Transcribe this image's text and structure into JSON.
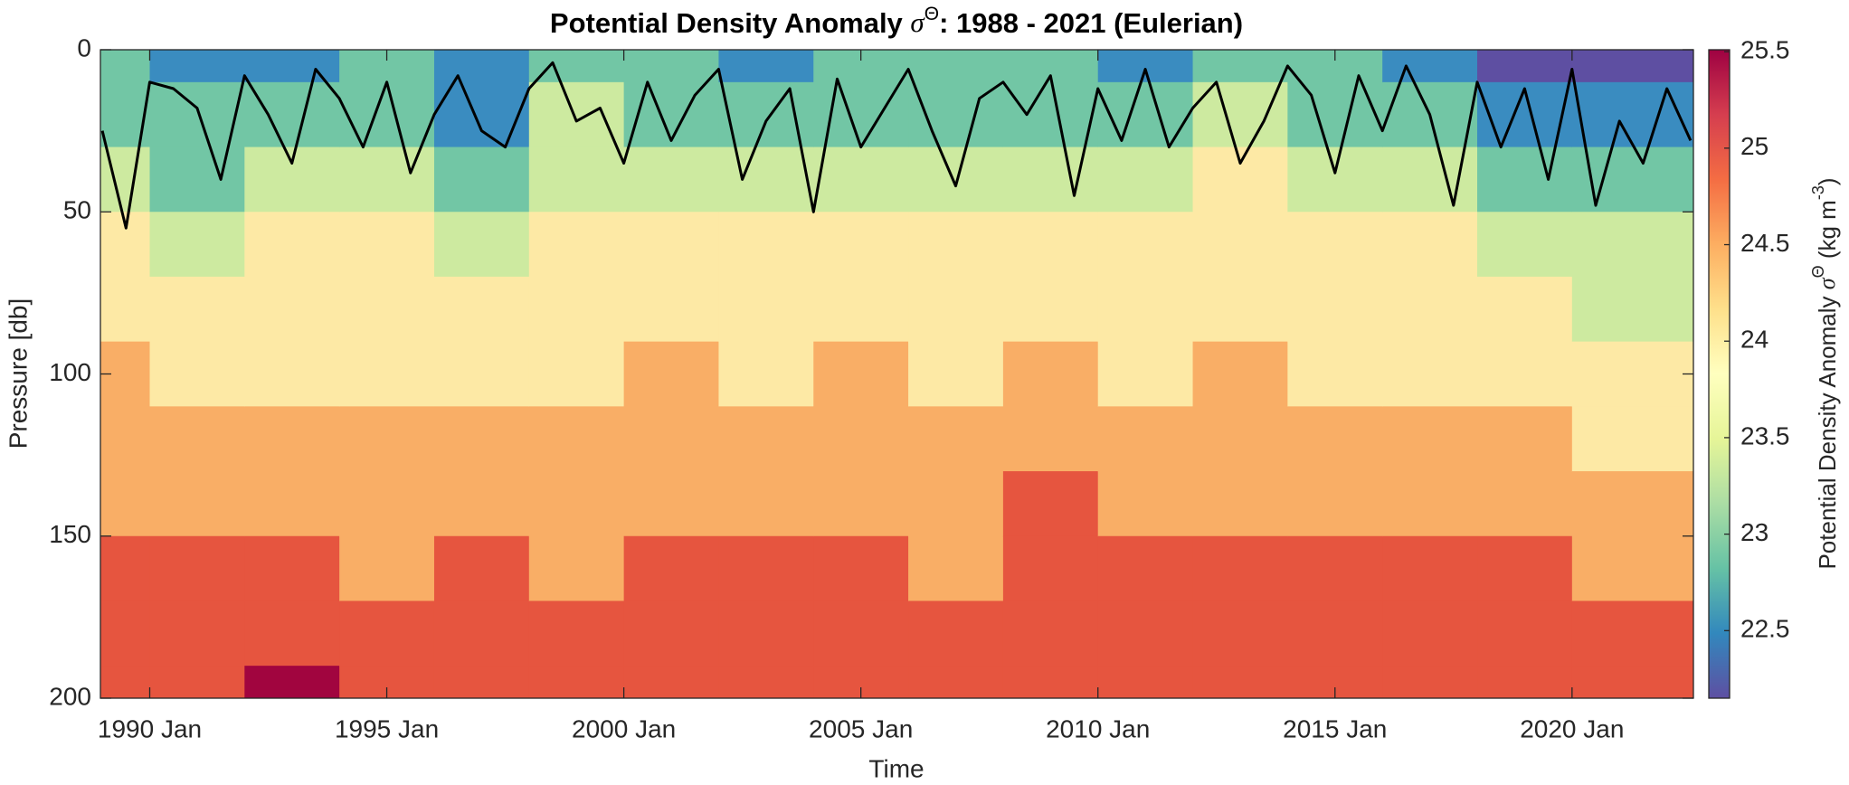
{
  "chart_data": {
    "type": "contourf",
    "title": "Potential Density Anomaly ",
    "title_symbol": "σ",
    "title_superscript": "Θ",
    "title_rest": ": 1988 - 2021 (Eulerian)",
    "x_label": "Time",
    "y_label": "Pressure [db]",
    "colorbar_label": "Potential Density Anomaly ",
    "colorbar_symbol": "σ",
    "colorbar_superscript": "Θ",
    "colorbar_unit": " (kg m",
    "colorbar_unit_exponent": "-3",
    "colorbar_unit_close": ")",
    "xlim": [
      1988.96,
      2022.56
    ],
    "xticks": [
      {
        "value": 1990,
        "label": "1990 Jan"
      },
      {
        "value": 1995,
        "label": "1995 Jan"
      },
      {
        "value": 2000,
        "label": "2000 Jan"
      },
      {
        "value": 2005,
        "label": "2005 Jan"
      },
      {
        "value": 2010,
        "label": "2010 Jan"
      },
      {
        "value": 2015,
        "label": "2015 Jan"
      },
      {
        "value": 2020,
        "label": "2020 Jan"
      }
    ],
    "ylim": [
      0,
      200
    ],
    "y_reversed": true,
    "yticks": [
      0,
      50,
      100,
      150,
      200
    ],
    "clim": [
      22.15,
      25.51
    ],
    "cticks": [
      22.5,
      23,
      23.5,
      24,
      24.5,
      25,
      25.5
    ],
    "levels": [
      22.5,
      22.9,
      23.3,
      23.7,
      24.3,
      24.8,
      25.3
    ],
    "level_colors": [
      "#5e4fa2",
      "#3a8cc0",
      "#72c6a5",
      "#cdeaa0",
      "#fde9a5",
      "#f9ae66",
      "#e6553f",
      "#a1053f"
    ],
    "colormap": [
      "#5e4fa2",
      "#3288bd",
      "#66c2a5",
      "#abdda4",
      "#e6f598",
      "#ffffbf",
      "#fee08b",
      "#fdae61",
      "#f46d43",
      "#d53e4f",
      "#9e0142"
    ],
    "x": [
      1989,
      1991,
      1993,
      1995,
      1997,
      1999,
      2001,
      2003,
      2005,
      2007,
      2009,
      2011,
      2013,
      2015,
      2017,
      2019,
      2021
    ],
    "depths": [
      0,
      20,
      40,
      60,
      80,
      100,
      120,
      140,
      160,
      180,
      200
    ],
    "values": [
      [
        23.0,
        23.1,
        23.4,
        23.7,
        24.0,
        24.3,
        24.5,
        24.7,
        24.9,
        25.0,
        25.1
      ],
      [
        22.7,
        22.9,
        23.2,
        23.6,
        23.9,
        24.2,
        24.4,
        24.6,
        24.8,
        24.9,
        25.0
      ],
      [
        22.8,
        23.0,
        23.3,
        23.8,
        24.0,
        24.2,
        24.4,
        24.6,
        24.9,
        25.1,
        25.3
      ],
      [
        23.1,
        23.2,
        23.5,
        23.9,
        24.1,
        24.2,
        24.4,
        24.5,
        24.7,
        24.9,
        25.0
      ],
      [
        22.6,
        22.8,
        23.1,
        23.6,
        24.0,
        24.2,
        24.3,
        24.5,
        24.8,
        24.9,
        25.1
      ],
      [
        23.2,
        23.3,
        23.6,
        23.9,
        24.1,
        24.2,
        24.3,
        24.4,
        24.6,
        24.8,
        24.9
      ],
      [
        23.0,
        23.2,
        23.5,
        23.9,
        24.1,
        24.3,
        24.5,
        24.6,
        24.8,
        24.9,
        25.0
      ],
      [
        22.8,
        23.0,
        23.4,
        23.8,
        24.0,
        24.2,
        24.4,
        24.6,
        24.8,
        25.0,
        25.1
      ],
      [
        22.9,
        23.1,
        23.5,
        23.9,
        24.1,
        24.3,
        24.5,
        24.7,
        24.9,
        24.9,
        25.0
      ],
      [
        23.1,
        23.2,
        23.6,
        23.9,
        24.1,
        24.2,
        24.4,
        24.6,
        24.7,
        24.9,
        25.0
      ],
      [
        23.0,
        23.2,
        23.6,
        24.0,
        24.2,
        24.4,
        24.6,
        24.8,
        24.9,
        25.0,
        25.2
      ],
      [
        22.8,
        23.0,
        23.4,
        23.8,
        24.0,
        24.2,
        24.4,
        24.6,
        24.8,
        24.9,
        25.0
      ],
      [
        23.1,
        23.3,
        23.7,
        24.0,
        24.2,
        24.3,
        24.5,
        24.6,
        24.8,
        24.9,
        25.0
      ],
      [
        22.9,
        23.1,
        23.5,
        23.8,
        24.0,
        24.2,
        24.4,
        24.7,
        24.9,
        25.0,
        25.1
      ],
      [
        22.7,
        22.9,
        23.3,
        23.7,
        24.0,
        24.2,
        24.4,
        24.6,
        24.8,
        24.9,
        25.0
      ],
      [
        22.4,
        22.7,
        23.1,
        23.5,
        23.8,
        24.1,
        24.3,
        24.6,
        24.8,
        24.9,
        25.1
      ],
      [
        22.3,
        22.6,
        22.9,
        23.3,
        23.6,
        23.9,
        24.2,
        24.5,
        24.7,
        24.9,
        25.0
      ]
    ],
    "line": {
      "color": "#000000",
      "x": [
        1989,
        1989.5,
        1990,
        1990.5,
        1991,
        1991.5,
        1992,
        1992.5,
        1993,
        1993.5,
        1994,
        1994.5,
        1995,
        1995.5,
        1996,
        1996.5,
        1997,
        1997.5,
        1998,
        1998.5,
        1999,
        1999.5,
        2000,
        2000.5,
        2001,
        2001.5,
        2002,
        2002.5,
        2003,
        2003.5,
        2004,
        2004.5,
        2005,
        2005.5,
        2006,
        2006.5,
        2007,
        2007.5,
        2008,
        2008.5,
        2009,
        2009.5,
        2010,
        2010.5,
        2011,
        2011.5,
        2012,
        2012.5,
        2013,
        2013.5,
        2014,
        2014.5,
        2015,
        2015.5,
        2016,
        2016.5,
        2017,
        2017.5,
        2018,
        2018.5,
        2019,
        2019.5,
        2020,
        2020.5,
        2021,
        2021.5,
        2022,
        2022.5
      ],
      "values": [
        25,
        55,
        10,
        12,
        18,
        40,
        8,
        20,
        35,
        6,
        15,
        30,
        10,
        38,
        20,
        8,
        25,
        30,
        12,
        4,
        22,
        18,
        35,
        10,
        28,
        14,
        6,
        40,
        22,
        12,
        50,
        9,
        30,
        18,
        6,
        25,
        42,
        15,
        10,
        20,
        8,
        45,
        12,
        28,
        6,
        30,
        18,
        10,
        35,
        22,
        5,
        14,
        38,
        8,
        25,
        5,
        20,
        48,
        10,
        30,
        12,
        40,
        6,
        48,
        22,
        35,
        12,
        28
      ]
    }
  }
}
